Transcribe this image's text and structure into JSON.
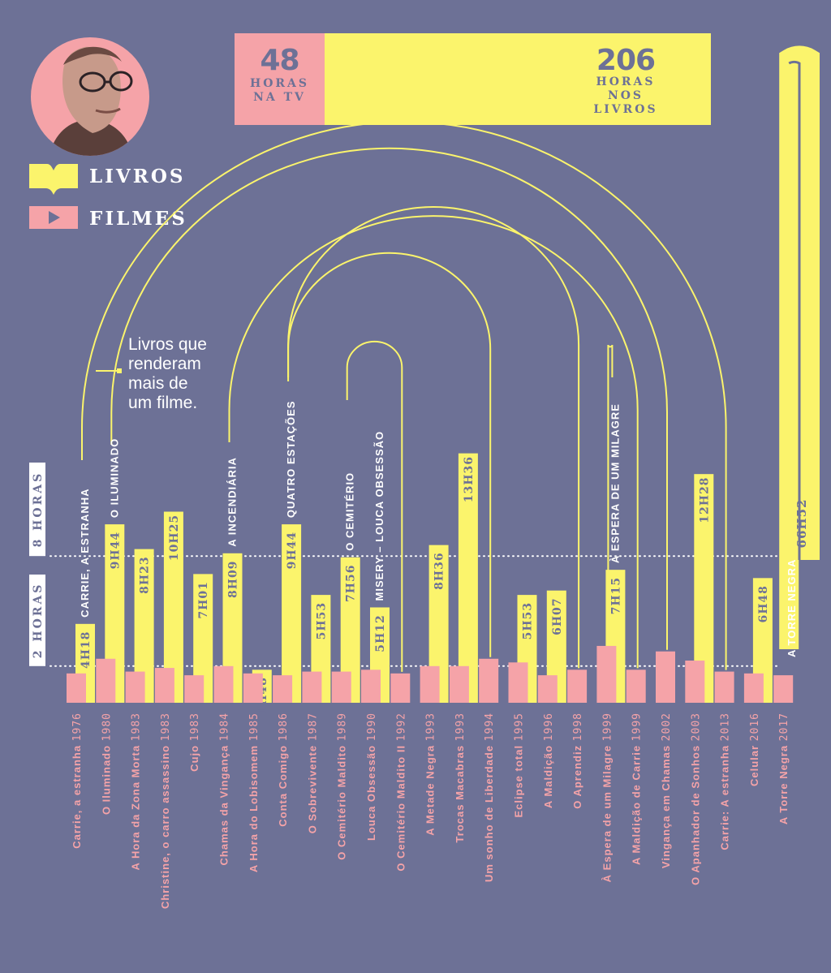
{
  "totals": {
    "tv_hours": "48",
    "tv_label": [
      "HORAS",
      "NA TV"
    ],
    "book_hours": "206",
    "book_label": [
      "HORAS",
      "NOS",
      "LIVROS"
    ]
  },
  "legend": {
    "books": "LIVROS",
    "films": "FILMES"
  },
  "annotation": [
    "Livros que",
    "renderam",
    "mais de",
    "um filme."
  ],
  "colors": {
    "background": "#6d7196",
    "books": "#fbf46c",
    "films": "#f5a3a8",
    "text": "#ffffff"
  },
  "chart_data": {
    "type": "bar",
    "reference_lines": [
      {
        "label": "2 HORAS",
        "hours": 2
      },
      {
        "label": "8 HORAS",
        "hours": 8
      }
    ],
    "films": [
      {
        "title": "Carrie, a estranha",
        "year": "1976",
        "film_hours": 1.6
      },
      {
        "title": "O Iluminado",
        "year": "1980",
        "film_hours": 2.4
      },
      {
        "title": "A Hora da Zona Morta",
        "year": "1983",
        "film_hours": 1.7
      },
      {
        "title": "Christine, o carro assassino",
        "year": "1983",
        "film_hours": 1.9
      },
      {
        "title": "Cujo",
        "year": "1983",
        "film_hours": 1.5
      },
      {
        "title": "Chamas da Vingança",
        "year": "1984",
        "film_hours": 2.0
      },
      {
        "title": "A Hora do Lobisomem",
        "year": "1985",
        "film_hours": 1.6
      },
      {
        "title": "Conta Comigo",
        "year": "1986",
        "film_hours": 1.5
      },
      {
        "title": "O Sobrevivente",
        "year": "1987",
        "film_hours": 1.7
      },
      {
        "title": "O Cemitério Maldito",
        "year": "1989",
        "film_hours": 1.7
      },
      {
        "title": "Louca Obsessão",
        "year": "1990",
        "film_hours": 1.8
      },
      {
        "title": "O Cemitério Maldito II",
        "year": "1992",
        "film_hours": 1.6
      },
      {
        "title": "A Metade Negra",
        "year": "1993",
        "film_hours": 2.0
      },
      {
        "title": "Trocas Macabras",
        "year": "1993",
        "film_hours": 2.0
      },
      {
        "title": "Um sonho de Liberdade",
        "year": "1994",
        "film_hours": 2.4
      },
      {
        "title": "Eclipse total",
        "year": "1995",
        "film_hours": 2.2
      },
      {
        "title": "A Maldição",
        "year": "1996",
        "film_hours": 1.5
      },
      {
        "title": "O Aprendiz",
        "year": "1998",
        "film_hours": 1.8
      },
      {
        "title": "À Espera de um Milagre",
        "year": "1999",
        "film_hours": 3.1
      },
      {
        "title": "A Maldição de Carrie",
        "year": "1999",
        "film_hours": 1.8
      },
      {
        "title": "Vingança em Chamas",
        "year": "2002",
        "film_hours": 2.8
      },
      {
        "title": "O Apanhador de Sonhos",
        "year": "2003",
        "film_hours": 2.3
      },
      {
        "title": "Carrie: A estranha",
        "year": "2013",
        "film_hours": 1.7
      },
      {
        "title": "Celular",
        "year": "2016",
        "film_hours": 1.6
      },
      {
        "title": "A Torre Negra",
        "year": "2017",
        "film_hours": 1.5
      }
    ],
    "books": [
      {
        "film_index": 0,
        "label": "4H18",
        "hours": 4.3,
        "title": "CARRIE, A ESTRANHA"
      },
      {
        "film_index": 1,
        "label": "9H44",
        "hours": 9.73,
        "title": "O ILUMINADO"
      },
      {
        "film_index": 2,
        "label": "8H23",
        "hours": 8.38
      },
      {
        "film_index": 3,
        "label": "10H25",
        "hours": 10.42
      },
      {
        "film_index": 4,
        "label": "7H01",
        "hours": 7.02
      },
      {
        "film_index": 5,
        "label": "8H09",
        "hours": 8.15,
        "title": "A INCENDIÁRIA"
      },
      {
        "film_index": 6,
        "label": "1H48",
        "hours": 1.8
      },
      {
        "film_index": 7,
        "label": "9H44",
        "hours": 9.73,
        "title": "QUATRO ESTAÇÕES"
      },
      {
        "film_index": 8,
        "label": "5H53",
        "hours": 5.88
      },
      {
        "film_index": 9,
        "label": "7H56",
        "hours": 7.93,
        "title": "O CEMITÉRIO"
      },
      {
        "film_index": 10,
        "label": "5H12",
        "hours": 5.2,
        "title": "MISERY – LOUCA OBSESSÃO"
      },
      {
        "film_index": 12,
        "label": "8H36",
        "hours": 8.6
      },
      {
        "film_index": 13,
        "label": "13H36",
        "hours": 13.6
      },
      {
        "film_index": 15,
        "label": "5H53",
        "hours": 5.88
      },
      {
        "film_index": 16,
        "label": "6H07",
        "hours": 6.12
      },
      {
        "film_index": 18,
        "label": "7H15",
        "hours": 7.25,
        "title": "À ESPERA DE UM MILAGRE"
      },
      {
        "film_index": 21,
        "label": "12H28",
        "hours": 12.47
      },
      {
        "film_index": 23,
        "label": "6H48",
        "hours": 6.8
      },
      {
        "film_index": 24,
        "label": "66H52",
        "hours": 66.87,
        "title": "A TORRE NEGRA",
        "loop": true
      }
    ],
    "multi_film_links": [
      {
        "book_index": 0,
        "films": [
          0,
          22
        ]
      },
      {
        "book_index": 1,
        "films": [
          1,
          20
        ]
      },
      {
        "book_index": 5,
        "films": [
          5,
          19
        ]
      },
      {
        "book_index": 7,
        "films": [
          7,
          17
        ]
      },
      {
        "book_index": 9,
        "films": [
          9,
          11
        ]
      },
      {
        "book_index": 7,
        "films": [
          7,
          14
        ]
      },
      {
        "book_index": 15,
        "films": [
          15,
          18
        ]
      }
    ]
  }
}
